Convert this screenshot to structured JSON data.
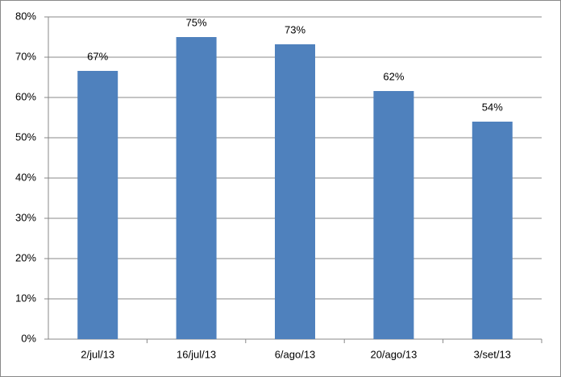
{
  "chart_data": {
    "type": "bar",
    "categories": [
      "2/jul/13",
      "16/jul/13",
      "6/ago/13",
      "20/ago/13",
      "3/set/13"
    ],
    "values": [
      66.6,
      75.0,
      73.2,
      61.6,
      54.0
    ],
    "value_labels": [
      "67%",
      "75%",
      "73%",
      "62%",
      "54%"
    ],
    "color": "#4f81bd",
    "ylim": [
      0,
      80
    ],
    "yticks": [
      {
        "value": 0,
        "label": "0%"
      },
      {
        "value": 10,
        "label": "10%"
      },
      {
        "value": 20,
        "label": "20%"
      },
      {
        "value": 30,
        "label": "30%"
      },
      {
        "value": 40,
        "label": "40%"
      },
      {
        "value": 50,
        "label": "50%"
      },
      {
        "value": 60,
        "label": "60%"
      },
      {
        "value": 70,
        "label": "70%"
      },
      {
        "value": 80,
        "label": "80%"
      }
    ],
    "grid": true
  }
}
